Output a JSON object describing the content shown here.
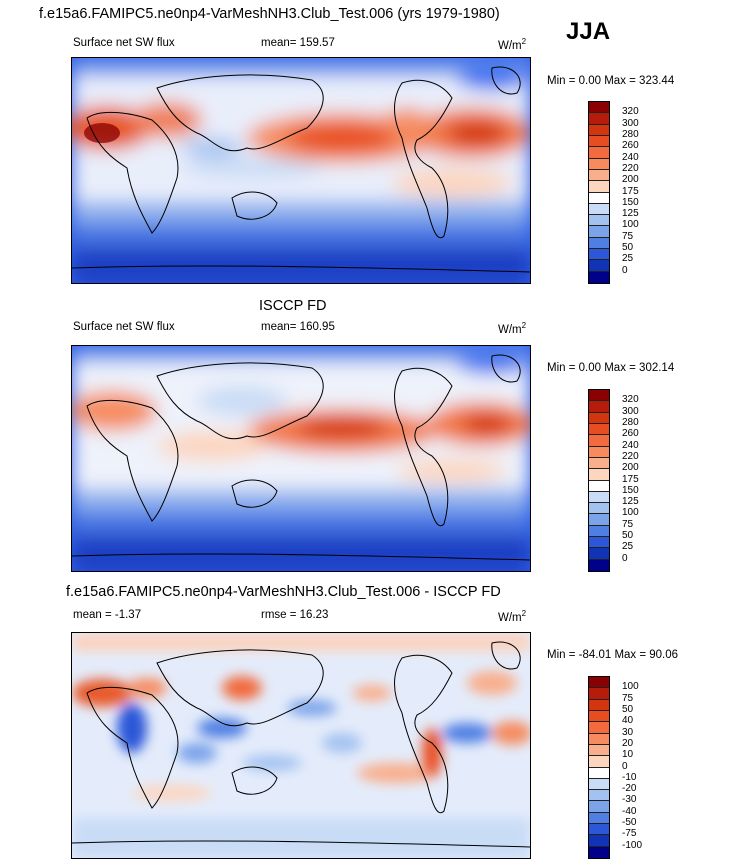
{
  "season": "JJA",
  "panels": [
    {
      "title": "f.e15a6.FAMIPC5.ne0np4-VarMeshNH3.Club_Test.006 (yrs 1979-1980)",
      "left_label": "Surface net SW flux",
      "mid_label": "mean= 159.57",
      "units_base": "W/m",
      "units_exp": "2",
      "minmax": "Min =   0.00 Max = 323.44",
      "levels": [
        "320",
        "300",
        "280",
        "260",
        "240",
        "220",
        "200",
        "175",
        "150",
        "125",
        "100",
        "75",
        "50",
        "25",
        "0"
      ],
      "colors": [
        "#8b0000",
        "#b51c0c",
        "#d3350f",
        "#e84d22",
        "#f26a3d",
        "#f78a5e",
        "#f9ae8c",
        "#fcd6bf",
        "#ffffff",
        "#c9dcf6",
        "#a4c2f0",
        "#7aa3ea",
        "#4f7fe3",
        "#2b57d8",
        "#1133b6",
        "#00008a"
      ]
    },
    {
      "title": "ISCCP FD",
      "left_label": "Surface net SW flux",
      "mid_label": "mean= 160.95",
      "units_base": "W/m",
      "units_exp": "2",
      "minmax": "Min =   0.00 Max = 302.14",
      "levels": [
        "320",
        "300",
        "280",
        "260",
        "240",
        "220",
        "200",
        "175",
        "150",
        "125",
        "100",
        "75",
        "50",
        "25",
        "0"
      ],
      "colors": [
        "#8b0000",
        "#b51c0c",
        "#d3350f",
        "#e84d22",
        "#f26a3d",
        "#f78a5e",
        "#f9ae8c",
        "#fcd6bf",
        "#ffffff",
        "#c9dcf6",
        "#a4c2f0",
        "#7aa3ea",
        "#4f7fe3",
        "#2b57d8",
        "#1133b6",
        "#00008a"
      ]
    },
    {
      "title": "f.e15a6.FAMIPC5.ne0np4-VarMeshNH3.Club_Test.006 - ISCCP FD",
      "left_label": "mean =  -1.37",
      "mid_label": "rmse =  16.23",
      "units_base": "W/m",
      "units_exp": "2",
      "minmax": "Min = -84.01 Max =  90.06",
      "levels": [
        "100",
        "75",
        "50",
        "40",
        "30",
        "20",
        "10",
        "0",
        "-10",
        "-20",
        "-30",
        "-40",
        "-50",
        "-75",
        "-100"
      ],
      "colors": [
        "#8b0000",
        "#b51c0c",
        "#d3350f",
        "#e84d22",
        "#f26a3d",
        "#f78a5e",
        "#f9ae8c",
        "#fcd6bf",
        "#ffffff",
        "#c9dcf6",
        "#a4c2f0",
        "#7aa3ea",
        "#4f7fe3",
        "#2b57d8",
        "#1133b6",
        "#00008a"
      ]
    }
  ],
  "chart_data": [
    {
      "type": "heatmap",
      "title": "f.e15a6.FAMIPC5.ne0np4-VarMeshNH3.Club_Test.006 (yrs 1979-1980)",
      "variable": "Surface net SW flux",
      "units": "W/m2",
      "mean": 159.57,
      "min": 0.0,
      "max": 323.44,
      "contour_levels": [
        0,
        25,
        50,
        75,
        100,
        125,
        150,
        175,
        200,
        220,
        240,
        260,
        280,
        300,
        320
      ]
    },
    {
      "type": "heatmap",
      "title": "ISCCP FD",
      "variable": "Surface net SW flux",
      "units": "W/m2",
      "mean": 160.95,
      "min": 0.0,
      "max": 302.14,
      "contour_levels": [
        0,
        25,
        50,
        75,
        100,
        125,
        150,
        175,
        200,
        220,
        240,
        260,
        280,
        300,
        320
      ]
    },
    {
      "type": "heatmap",
      "title": "f.e15a6.FAMIPC5.ne0np4-VarMeshNH3.Club_Test.006 - ISCCP FD",
      "units": "W/m2",
      "mean": -1.37,
      "rmse": 16.23,
      "min": -84.01,
      "max": 90.06,
      "contour_levels": [
        -100,
        -75,
        -50,
        -40,
        -30,
        -20,
        -10,
        0,
        10,
        20,
        30,
        40,
        50,
        75,
        100
      ]
    }
  ]
}
